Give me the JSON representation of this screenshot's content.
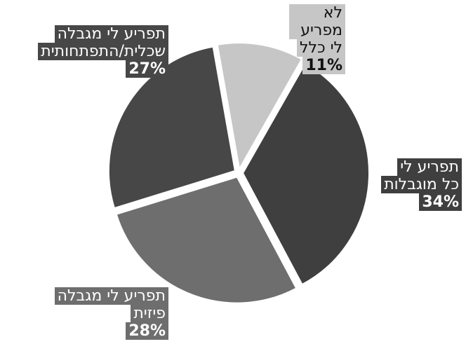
{
  "chart_data": {
    "type": "pie",
    "slices": [
      {
        "label_lines": [
          "לא מפריע",
          "לי כלל"
        ],
        "value": 11,
        "value_label": "11%",
        "color": "#c6c6c6"
      },
      {
        "label_lines": [
          "תפריע לי",
          "כל מוגבלות"
        ],
        "value": 34,
        "value_label": "34%",
        "color": "#3f3f3f"
      },
      {
        "label_lines": [
          "תפריע לי מגבלה",
          "פיזית"
        ],
        "value": 28,
        "value_label": "28%",
        "color": "#6e6e6e"
      },
      {
        "label_lines": [
          "תפריע לי מגבלה",
          "שכלית/התפתחותית"
        ],
        "value": 27,
        "value_label": "27%",
        "color": "#474747"
      }
    ]
  }
}
